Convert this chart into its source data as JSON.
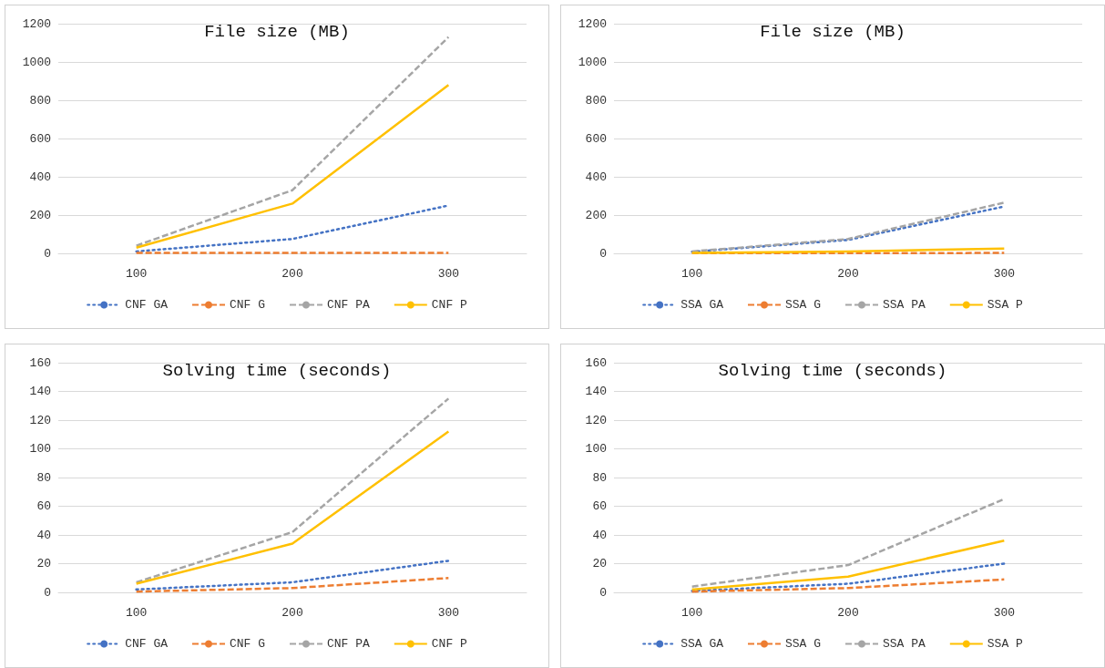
{
  "chart_data": [
    {
      "type": "line",
      "title": "File size (MB)",
      "categories": [
        "100",
        "200",
        "300"
      ],
      "ylim": [
        0,
        1200
      ],
      "yticks": [
        0,
        200,
        400,
        600,
        800,
        1000,
        1200
      ],
      "grid": "y",
      "legend": "bottom",
      "marker": "none",
      "series": [
        {
          "name": "CNF GA",
          "color": "#4472c4",
          "line_style": "dotted",
          "values": [
            10,
            75,
            250
          ]
        },
        {
          "name": "CNF G",
          "color": "#ed7d31",
          "line_style": "dashed",
          "values": [
            2,
            2,
            2
          ]
        },
        {
          "name": "CNF PA",
          "color": "#a5a5a5",
          "line_style": "dashed",
          "values": [
            40,
            330,
            1130
          ]
        },
        {
          "name": "CNF P",
          "color": "#ffc000",
          "line_style": "solid",
          "values": [
            30,
            260,
            880
          ]
        }
      ]
    },
    {
      "type": "line",
      "title": "File size (MB)",
      "categories": [
        "100",
        "200",
        "300"
      ],
      "ylim": [
        0,
        1200
      ],
      "yticks": [
        0,
        200,
        400,
        600,
        800,
        1000,
        1200
      ],
      "grid": "y",
      "legend": "bottom",
      "marker": "none",
      "series": [
        {
          "name": "SSA GA",
          "color": "#4472c4",
          "line_style": "dotted",
          "values": [
            8,
            70,
            245
          ]
        },
        {
          "name": "SSA G",
          "color": "#ed7d31",
          "line_style": "dashed",
          "values": [
            1,
            1,
            2
          ]
        },
        {
          "name": "SSA PA",
          "color": "#a5a5a5",
          "line_style": "dashed",
          "values": [
            10,
            75,
            265
          ]
        },
        {
          "name": "SSA P",
          "color": "#ffc000",
          "line_style": "solid",
          "values": [
            2,
            10,
            25
          ]
        }
      ]
    },
    {
      "type": "line",
      "title": "Solving time (seconds)",
      "categories": [
        "100",
        "200",
        "300"
      ],
      "ylim": [
        0,
        160
      ],
      "yticks": [
        0,
        20,
        40,
        60,
        80,
        100,
        120,
        140,
        160
      ],
      "grid": "y",
      "legend": "bottom",
      "marker": "none",
      "series": [
        {
          "name": "CNF GA",
          "color": "#4472c4",
          "line_style": "dotted",
          "values": [
            2,
            7,
            22
          ]
        },
        {
          "name": "CNF G",
          "color": "#ed7d31",
          "line_style": "dashed",
          "values": [
            0.5,
            3,
            10
          ]
        },
        {
          "name": "CNF PA",
          "color": "#a5a5a5",
          "line_style": "dashed",
          "values": [
            7,
            42,
            135
          ]
        },
        {
          "name": "CNF P",
          "color": "#ffc000",
          "line_style": "solid",
          "values": [
            6,
            34,
            112
          ]
        }
      ]
    },
    {
      "type": "line",
      "title": "Solving time (seconds)",
      "categories": [
        "100",
        "200",
        "300"
      ],
      "ylim": [
        0,
        160
      ],
      "yticks": [
        0,
        20,
        40,
        60,
        80,
        100,
        120,
        140,
        160
      ],
      "grid": "y",
      "legend": "bottom",
      "marker": "none",
      "series": [
        {
          "name": "SSA GA",
          "color": "#4472c4",
          "line_style": "dotted",
          "values": [
            1,
            6,
            20
          ]
        },
        {
          "name": "SSA G",
          "color": "#ed7d31",
          "line_style": "dashed",
          "values": [
            0.5,
            3,
            9
          ]
        },
        {
          "name": "SSA PA",
          "color": "#a5a5a5",
          "line_style": "dashed",
          "values": [
            4,
            19,
            65
          ]
        },
        {
          "name": "SSA P",
          "color": "#ffc000",
          "line_style": "solid",
          "values": [
            2,
            11,
            36
          ]
        }
      ]
    }
  ]
}
